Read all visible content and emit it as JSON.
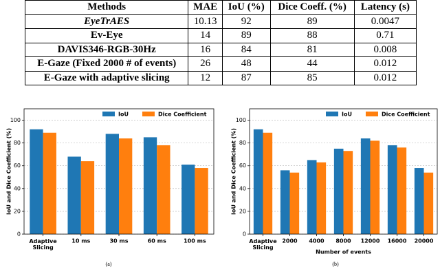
{
  "table": {
    "header": [
      "Methods",
      "MAE",
      "IoU (%)",
      "Dice Coeff. (%)",
      "Latency (s)"
    ],
    "rows": [
      [
        "EyeTrAES",
        10.13,
        92,
        89,
        0.0047
      ],
      [
        "Ev-Eye",
        14,
        89,
        88,
        0.71
      ],
      [
        "DAVIS346-RGB-30Hz",
        16,
        84,
        81,
        0.008
      ],
      [
        "E-Gaze (Fixed 2000 # of events)",
        26,
        48,
        44,
        0.012
      ],
      [
        "E-Gaze with adaptive slicing",
        12,
        87,
        85,
        0.012
      ]
    ]
  },
  "chart_data": [
    {
      "type": "bar",
      "caption": "(a)",
      "y_label": "IoU and Dice Coefficient (%)",
      "categories": [
        "Adaptive\nSlicing",
        "10 ms",
        "30 ms",
        "60 ms",
        "100 ms"
      ],
      "series": [
        {
          "name": "IoU",
          "color": "#1f77b4",
          "values": [
            92,
            68,
            88,
            85,
            61
          ]
        },
        {
          "name": "Dice Coefficient",
          "color": "#ff7f0e",
          "values": [
            89,
            64,
            84,
            78,
            58
          ]
        }
      ],
      "ylim": [
        0,
        110
      ],
      "yticks": [
        0,
        20,
        40,
        60,
        80,
        100
      ],
      "grid": true,
      "legend": "upper right"
    },
    {
      "type": "bar",
      "caption": "(b)",
      "y_label": "IoU and Dice Coefficient (%)",
      "x_label": "Number of events",
      "categories": [
        "Adaptive\nSlicing",
        "2000",
        "4000",
        "8000",
        "12000",
        "16000",
        "20000"
      ],
      "series": [
        {
          "name": "IoU",
          "color": "#1f77b4",
          "values": [
            92,
            56,
            65,
            75,
            84,
            78,
            58
          ]
        },
        {
          "name": "Dice Coefficient",
          "color": "#ff7f0e",
          "values": [
            89,
            54,
            63,
            73,
            82,
            76,
            54
          ]
        }
      ],
      "ylim": [
        0,
        110
      ],
      "yticks": [
        0,
        20,
        40,
        60,
        80,
        100
      ],
      "grid": true,
      "legend": "upper right"
    }
  ]
}
